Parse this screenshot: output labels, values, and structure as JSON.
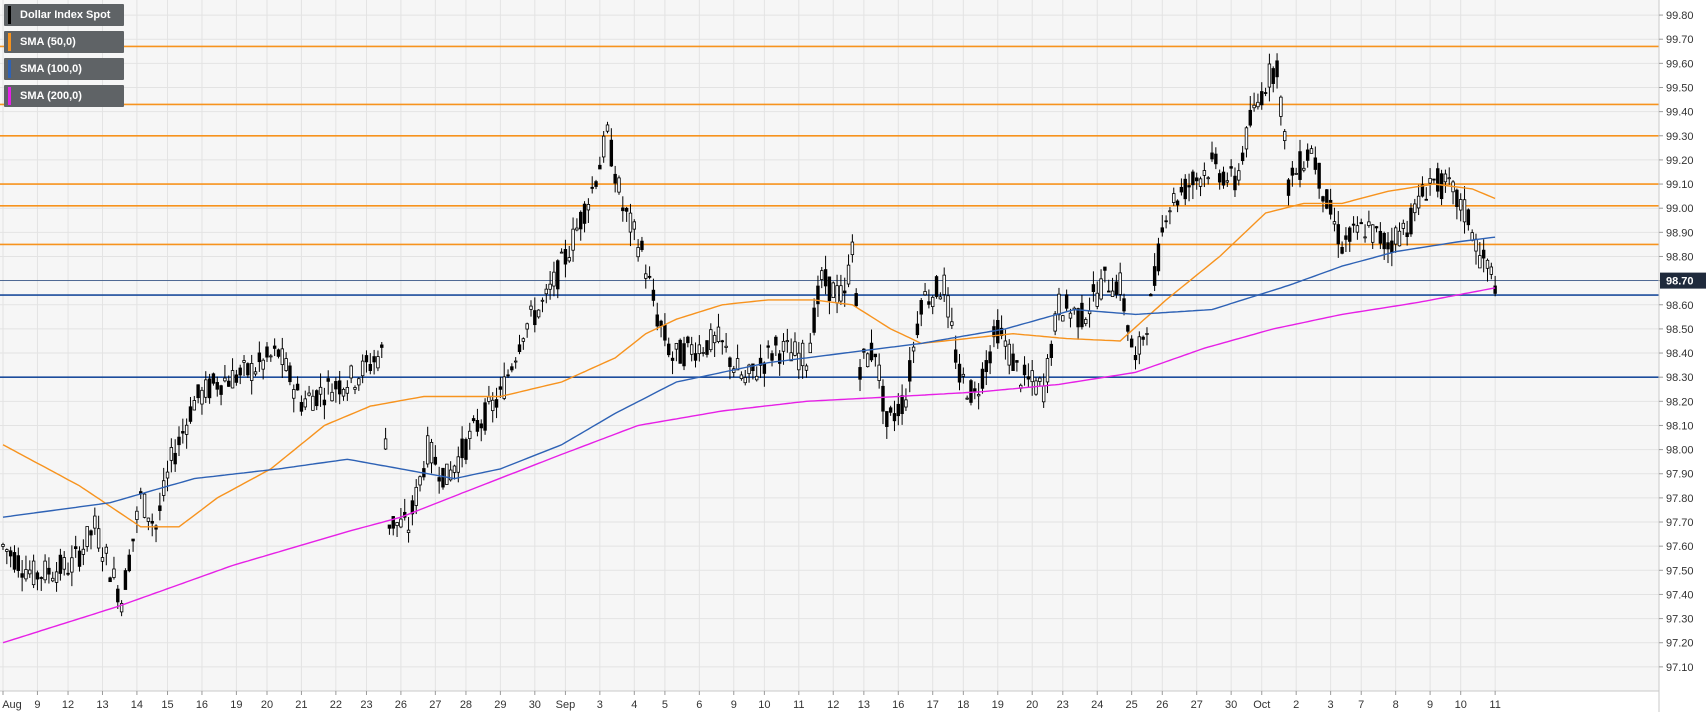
{
  "legend": [
    {
      "label": "Dollar Index Spot",
      "color": "#000000"
    },
    {
      "label": "SMA (50,0)",
      "color": "#f7931e"
    },
    {
      "label": "SMA (100,0)",
      "color": "#2e62b5"
    },
    {
      "label": "SMA (200,0)",
      "color": "#e620e6"
    }
  ],
  "chart_data": {
    "type": "candlestick",
    "title": "",
    "ylim": [
      97.0,
      99.85
    ],
    "grid": true,
    "y_axis_position": "right",
    "y_ticks": [
      "97.10",
      "97.20",
      "97.30",
      "97.40",
      "97.50",
      "97.60",
      "97.70",
      "97.80",
      "97.90",
      "98.00",
      "98.10",
      "98.20",
      "98.30",
      "98.40",
      "98.50",
      "98.60",
      "98.70",
      "98.80",
      "98.90",
      "99.00",
      "99.10",
      "99.20",
      "99.30",
      "99.40",
      "99.50",
      "99.60",
      "99.70",
      "99.80"
    ],
    "x_tick_labels": [
      {
        "label": "Aug",
        "index": 0
      },
      {
        "label": "9",
        "index": 9
      },
      {
        "label": "12",
        "index": 17
      },
      {
        "label": "13",
        "index": 26
      },
      {
        "label": "14",
        "index": 35
      },
      {
        "label": "15",
        "index": 43
      },
      {
        "label": "16",
        "index": 52
      },
      {
        "label": "19",
        "index": 61
      },
      {
        "label": "20",
        "index": 69
      },
      {
        "label": "21",
        "index": 78
      },
      {
        "label": "22",
        "index": 87
      },
      {
        "label": "23",
        "index": 95
      },
      {
        "label": "26",
        "index": 104
      },
      {
        "label": "27",
        "index": 113
      },
      {
        "label": "28",
        "index": 121
      },
      {
        "label": "29",
        "index": 130
      },
      {
        "label": "30",
        "index": 139
      },
      {
        "label": "Sep",
        "index": 147
      },
      {
        "label": "3",
        "index": 156
      },
      {
        "label": "4",
        "index": 165
      },
      {
        "label": "5",
        "index": 173
      },
      {
        "label": "6",
        "index": 182
      },
      {
        "label": "9",
        "index": 191
      },
      {
        "label": "10",
        "index": 199
      },
      {
        "label": "11",
        "index": 208
      },
      {
        "label": "12",
        "index": 217
      },
      {
        "label": "13",
        "index": 225
      },
      {
        "label": "16",
        "index": 234
      },
      {
        "label": "17",
        "index": 243
      },
      {
        "label": "18",
        "index": 251
      },
      {
        "label": "19",
        "index": 260
      },
      {
        "label": "20",
        "index": 269
      },
      {
        "label": "23",
        "index": 277
      },
      {
        "label": "24",
        "index": 286
      },
      {
        "label": "25",
        "index": 295
      },
      {
        "label": "26",
        "index": 303
      },
      {
        "label": "27",
        "index": 312
      },
      {
        "label": "30",
        "index": 321
      },
      {
        "label": "Oct",
        "index": 329
      },
      {
        "label": "2",
        "index": 338
      },
      {
        "label": "3",
        "index": 347
      },
      {
        "label": "7",
        "index": 355
      },
      {
        "label": "8",
        "index": 364
      },
      {
        "label": "9",
        "index": 373
      },
      {
        "label": "10",
        "index": 381
      },
      {
        "label": "11",
        "index": 390
      }
    ],
    "horizontal_levels": [
      {
        "value": 99.67,
        "color": "#f7931e"
      },
      {
        "value": 99.43,
        "color": "#f7931e"
      },
      {
        "value": 99.3,
        "color": "#f7931e"
      },
      {
        "value": 99.1,
        "color": "#f7931e"
      },
      {
        "value": 99.01,
        "color": "#f7931e"
      },
      {
        "value": 98.85,
        "color": "#f7931e"
      },
      {
        "value": 98.64,
        "color": "#1c4d9c"
      },
      {
        "value": 98.3,
        "color": "#1c4d9c"
      }
    ],
    "current_price": {
      "value": 98.7,
      "label": "98.70"
    },
    "ohlc_anchors": [
      [
        0,
        97.6
      ],
      [
        8,
        97.48
      ],
      [
        18,
        97.52
      ],
      [
        24,
        97.68
      ],
      [
        31,
        97.38
      ],
      [
        36,
        97.8
      ],
      [
        40,
        97.68
      ],
      [
        44,
        97.95
      ],
      [
        50,
        98.2
      ],
      [
        56,
        98.28
      ],
      [
        64,
        98.32
      ],
      [
        72,
        98.4
      ],
      [
        78,
        98.2
      ],
      [
        86,
        98.26
      ],
      [
        92,
        98.3
      ],
      [
        99,
        98.4
      ],
      [
        101,
        97.7
      ],
      [
        106,
        97.68
      ],
      [
        111,
        98.0
      ],
      [
        116,
        97.88
      ],
      [
        124,
        98.1
      ],
      [
        130,
        98.22
      ],
      [
        136,
        98.5
      ],
      [
        142,
        98.62
      ],
      [
        148,
        98.83
      ],
      [
        154,
        99.08
      ],
      [
        158,
        99.3
      ],
      [
        162,
        99.0
      ],
      [
        167,
        98.82
      ],
      [
        171,
        98.55
      ],
      [
        175,
        98.38
      ],
      [
        180,
        98.42
      ],
      [
        187,
        98.45
      ],
      [
        194,
        98.28
      ],
      [
        202,
        98.42
      ],
      [
        210,
        98.38
      ],
      [
        214,
        98.7
      ],
      [
        220,
        98.62
      ],
      [
        222,
        98.85
      ],
      [
        224,
        98.35
      ],
      [
        228,
        98.42
      ],
      [
        231,
        98.1
      ],
      [
        236,
        98.22
      ],
      [
        240,
        98.62
      ],
      [
        246,
        98.68
      ],
      [
        250,
        98.3
      ],
      [
        254,
        98.22
      ],
      [
        260,
        98.5
      ],
      [
        266,
        98.3
      ],
      [
        272,
        98.25
      ],
      [
        276,
        98.6
      ],
      [
        282,
        98.55
      ],
      [
        288,
        98.7
      ],
      [
        292,
        98.68
      ],
      [
        296,
        98.35
      ],
      [
        300,
        98.6
      ],
      [
        304,
        99.0
      ],
      [
        310,
        99.1
      ],
      [
        316,
        99.18
      ],
      [
        322,
        99.1
      ],
      [
        326,
        99.35
      ],
      [
        330,
        99.52
      ],
      [
        333,
        99.6
      ],
      [
        336,
        99.1
      ],
      [
        342,
        99.25
      ],
      [
        346,
        99.02
      ],
      [
        350,
        98.85
      ],
      [
        356,
        98.92
      ],
      [
        362,
        98.85
      ],
      [
        368,
        98.95
      ],
      [
        373,
        99.12
      ],
      [
        378,
        99.08
      ],
      [
        383,
        98.96
      ],
      [
        386,
        98.8
      ],
      [
        390,
        98.7
      ]
    ],
    "sma_50_anchors": [
      [
        0,
        98.02
      ],
      [
        20,
        97.85
      ],
      [
        36,
        97.68
      ],
      [
        46,
        97.68
      ],
      [
        56,
        97.8
      ],
      [
        70,
        97.92
      ],
      [
        84,
        98.1
      ],
      [
        96,
        98.18
      ],
      [
        110,
        98.22
      ],
      [
        130,
        98.22
      ],
      [
        146,
        98.28
      ],
      [
        160,
        98.38
      ],
      [
        168,
        98.48
      ],
      [
        176,
        98.54
      ],
      [
        188,
        98.6
      ],
      [
        200,
        98.62
      ],
      [
        212,
        98.62
      ],
      [
        222,
        98.6
      ],
      [
        232,
        98.5
      ],
      [
        240,
        98.44
      ],
      [
        252,
        98.46
      ],
      [
        264,
        98.48
      ],
      [
        278,
        98.46
      ],
      [
        292,
        98.45
      ],
      [
        304,
        98.62
      ],
      [
        318,
        98.8
      ],
      [
        330,
        98.98
      ],
      [
        340,
        99.02
      ],
      [
        350,
        99.02
      ],
      [
        362,
        99.07
      ],
      [
        374,
        99.1
      ],
      [
        384,
        99.08
      ],
      [
        390,
        99.04
      ]
    ],
    "sma_100_anchors": [
      [
        0,
        97.72
      ],
      [
        28,
        97.78
      ],
      [
        50,
        97.88
      ],
      [
        72,
        97.92
      ],
      [
        90,
        97.96
      ],
      [
        104,
        97.92
      ],
      [
        118,
        97.88
      ],
      [
        130,
        97.92
      ],
      [
        146,
        98.02
      ],
      [
        160,
        98.15
      ],
      [
        176,
        98.28
      ],
      [
        200,
        98.36
      ],
      [
        220,
        98.4
      ],
      [
        240,
        98.44
      ],
      [
        262,
        98.5
      ],
      [
        280,
        98.58
      ],
      [
        296,
        98.56
      ],
      [
        316,
        98.58
      ],
      [
        336,
        98.68
      ],
      [
        350,
        98.76
      ],
      [
        364,
        98.82
      ],
      [
        380,
        98.86
      ],
      [
        390,
        98.88
      ]
    ],
    "sma_200_anchors": [
      [
        0,
        97.2
      ],
      [
        30,
        97.35
      ],
      [
        60,
        97.52
      ],
      [
        90,
        97.66
      ],
      [
        104,
        97.72
      ],
      [
        120,
        97.82
      ],
      [
        146,
        97.98
      ],
      [
        166,
        98.1
      ],
      [
        188,
        98.16
      ],
      [
        210,
        98.2
      ],
      [
        234,
        98.22
      ],
      [
        256,
        98.24
      ],
      [
        276,
        98.27
      ],
      [
        296,
        98.32
      ],
      [
        314,
        98.42
      ],
      [
        332,
        98.5
      ],
      [
        350,
        98.56
      ],
      [
        370,
        98.61
      ],
      [
        390,
        98.67
      ]
    ]
  }
}
